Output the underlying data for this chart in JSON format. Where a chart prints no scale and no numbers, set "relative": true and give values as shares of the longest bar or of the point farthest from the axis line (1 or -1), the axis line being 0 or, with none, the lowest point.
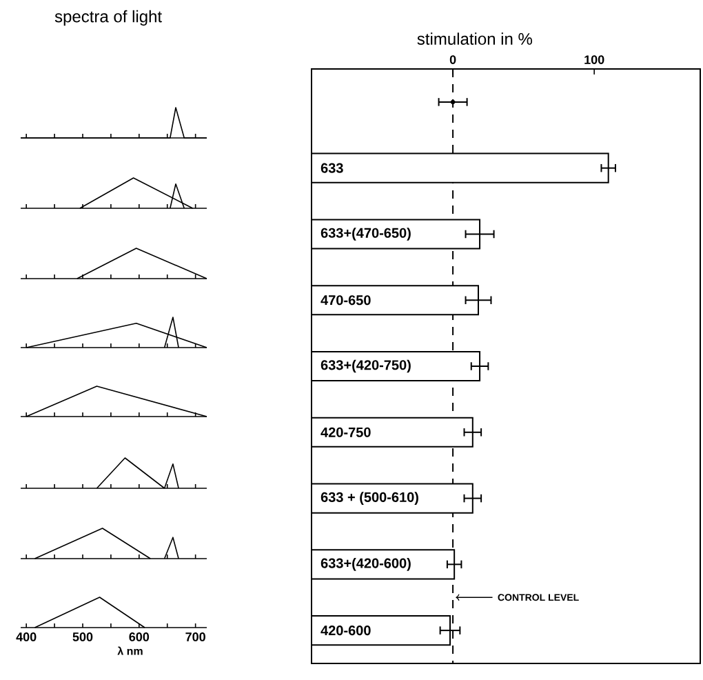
{
  "chart_data": [
    {
      "type": "other",
      "title": "spectra of light"
    },
    {
      "type": "line",
      "relative": true,
      "tick_labels": false,
      "xlim": [
        390,
        720
      ],
      "xticks": [
        {
          "value": 400,
          "label": null
        },
        {
          "value": 450,
          "label": null
        },
        {
          "value": 500,
          "label": null
        },
        {
          "value": 550,
          "label": null
        },
        {
          "value": 600,
          "label": null
        },
        {
          "value": 650,
          "label": null
        },
        {
          "value": 700,
          "label": null
        }
      ],
      "series": [
        {
          "color": "#000000",
          "x": [
            390,
            655,
            665,
            680,
            720
          ],
          "values": [
            0,
            0,
            1,
            0,
            0
          ]
        }
      ]
    },
    {
      "type": "line",
      "relative": true,
      "tick_labels": false,
      "xlim": [
        390,
        720
      ],
      "xticks": [
        {
          "value": 400,
          "label": null
        },
        {
          "value": 450,
          "label": null
        },
        {
          "value": 500,
          "label": null
        },
        {
          "value": 550,
          "label": null
        },
        {
          "value": 600,
          "label": null
        },
        {
          "value": 650,
          "label": null
        },
        {
          "value": 700,
          "label": null
        }
      ],
      "series": [
        {
          "color": "#000000",
          "x": [
            495,
            590,
            695
          ],
          "values": [
            0,
            1,
            0
          ]
        },
        {
          "color": "#000000",
          "x": [
            655,
            665,
            680
          ],
          "values": [
            0,
            0.8,
            0
          ]
        }
      ]
    },
    {
      "type": "line",
      "relative": true,
      "tick_labels": false,
      "xlim": [
        390,
        720
      ],
      "xticks": [
        {
          "value": 400,
          "label": null
        },
        {
          "value": 450,
          "label": null
        },
        {
          "value": 500,
          "label": null
        },
        {
          "value": 550,
          "label": null
        },
        {
          "value": 600,
          "label": null
        },
        {
          "value": 650,
          "label": null
        },
        {
          "value": 700,
          "label": null
        }
      ],
      "series": [
        {
          "color": "#000000",
          "x": [
            490,
            595,
            720
          ],
          "values": [
            0,
            1,
            0
          ]
        }
      ]
    },
    {
      "type": "line",
      "relative": true,
      "tick_labels": false,
      "xlim": [
        390,
        720
      ],
      "xticks": [
        {
          "value": 400,
          "label": null
        },
        {
          "value": 450,
          "label": null
        },
        {
          "value": 500,
          "label": null
        },
        {
          "value": 550,
          "label": null
        },
        {
          "value": 600,
          "label": null
        },
        {
          "value": 650,
          "label": null
        },
        {
          "value": 700,
          "label": null
        }
      ],
      "series": [
        {
          "color": "#000000",
          "x": [
            400,
            595,
            720
          ],
          "values": [
            0,
            0.8,
            0
          ]
        },
        {
          "color": "#000000",
          "x": [
            645,
            660,
            670
          ],
          "values": [
            0,
            1,
            0
          ]
        }
      ]
    },
    {
      "type": "line",
      "relative": true,
      "tick_labels": false,
      "xlim": [
        390,
        720
      ],
      "xticks": [
        {
          "value": 400,
          "label": null
        },
        {
          "value": 450,
          "label": null
        },
        {
          "value": 500,
          "label": null
        },
        {
          "value": 550,
          "label": null
        },
        {
          "value": 600,
          "label": null
        },
        {
          "value": 650,
          "label": null
        },
        {
          "value": 700,
          "label": null
        }
      ],
      "series": [
        {
          "color": "#000000",
          "x": [
            400,
            525,
            720
          ],
          "values": [
            0,
            1,
            0
          ]
        }
      ]
    },
    {
      "type": "line",
      "relative": true,
      "tick_labels": false,
      "xlim": [
        390,
        720
      ],
      "xticks": [
        {
          "value": 400,
          "label": null
        },
        {
          "value": 450,
          "label": null
        },
        {
          "value": 500,
          "label": null
        },
        {
          "value": 550,
          "label": null
        },
        {
          "value": 600,
          "label": null
        },
        {
          "value": 650,
          "label": null
        },
        {
          "value": 700,
          "label": null
        }
      ],
      "series": [
        {
          "color": "#000000",
          "x": [
            525,
            575,
            645
          ],
          "values": [
            0,
            1,
            0
          ]
        },
        {
          "color": "#000000",
          "x": [
            645,
            660,
            670
          ],
          "values": [
            0,
            0.8,
            0
          ]
        }
      ]
    },
    {
      "type": "line",
      "relative": true,
      "tick_labels": false,
      "xlim": [
        390,
        720
      ],
      "xticks": [
        {
          "value": 400,
          "label": null
        },
        {
          "value": 450,
          "label": null
        },
        {
          "value": 500,
          "label": null
        },
        {
          "value": 550,
          "label": null
        },
        {
          "value": 600,
          "label": null
        },
        {
          "value": 650,
          "label": null
        },
        {
          "value": 700,
          "label": null
        }
      ],
      "series": [
        {
          "color": "#000000",
          "x": [
            415,
            535,
            620
          ],
          "values": [
            0,
            1,
            0
          ]
        },
        {
          "color": "#000000",
          "x": [
            645,
            660,
            670
          ],
          "values": [
            0,
            0.7,
            0
          ]
        }
      ]
    },
    {
      "type": "line",
      "relative": true,
      "xlabel": "λ nm",
      "xlim": [
        390,
        720
      ],
      "xticks": [
        400,
        {
          "value": 450,
          "label": null
        },
        500,
        {
          "value": 550,
          "label": null
        },
        600,
        {
          "value": 650,
          "label": null
        },
        700
      ],
      "series": [
        {
          "color": "#000000",
          "x": [
            415,
            530,
            610
          ],
          "values": [
            0,
            1,
            0
          ]
        }
      ]
    },
    {
      "type": "bar",
      "orientation": "horizontal",
      "xlabel": "stimulation in %",
      "categories": [
        null,
        "633",
        "633+(470-650)",
        "470-650",
        "633+(420-750)",
        "420-750",
        "633 + (500-610)",
        "633+(420-600)",
        "420-600"
      ],
      "series": [
        {
          "type": "bar",
          "color": "#ffffff",
          "base": [
            null,
            -100,
            -100,
            -100,
            -100,
            -100,
            -100,
            -100,
            -100
          ],
          "values": [
            null,
            210,
            119,
            118,
            119,
            114,
            114,
            101,
            98
          ],
          "errors": [
            null,
            5,
            10,
            9,
            6,
            6,
            6,
            5,
            7
          ]
        },
        {
          "type": "scatter",
          "marker": "circle",
          "color": "#000000",
          "values": [
            0,
            null,
            null,
            null,
            null,
            null,
            null,
            null,
            null
          ],
          "errors": [
            10,
            null,
            null,
            null,
            null,
            null,
            null,
            null,
            null
          ]
        }
      ],
      "xlim": [
        -100,
        175
      ],
      "xticks": [
        0,
        100
      ],
      "ref_lines": [
        {
          "axis": "x",
          "value": 0,
          "label": "CONTROL LEVEL",
          "line_style": "dashed"
        }
      ]
    }
  ]
}
